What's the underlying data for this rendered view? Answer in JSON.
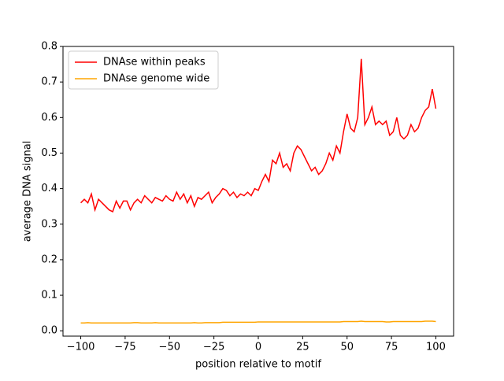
{
  "chart_data": {
    "type": "line",
    "xlabel": "position relative to motif",
    "ylabel": "average DNA signal",
    "x": [
      -100,
      -98,
      -96,
      -94,
      -92,
      -90,
      -88,
      -86,
      -84,
      -82,
      -80,
      -78,
      -76,
      -74,
      -72,
      -70,
      -68,
      -66,
      -64,
      -62,
      -60,
      -58,
      -56,
      -54,
      -52,
      -50,
      -48,
      -46,
      -44,
      -42,
      -40,
      -38,
      -36,
      -34,
      -32,
      -30,
      -28,
      -26,
      -24,
      -22,
      -20,
      -18,
      -16,
      -14,
      -12,
      -10,
      -8,
      -6,
      -4,
      -2,
      0,
      2,
      4,
      6,
      8,
      10,
      12,
      14,
      16,
      18,
      20,
      22,
      24,
      26,
      28,
      30,
      32,
      34,
      36,
      38,
      40,
      42,
      44,
      46,
      48,
      50,
      52,
      54,
      56,
      58,
      60,
      62,
      64,
      66,
      68,
      70,
      72,
      74,
      76,
      78,
      80,
      82,
      84,
      86,
      88,
      90,
      92,
      94,
      96,
      98,
      100
    ],
    "series": [
      {
        "name": "DNAse within peaks",
        "color": "#ff0000",
        "values": [
          0.36,
          0.37,
          0.36,
          0.385,
          0.34,
          0.37,
          0.36,
          0.35,
          0.34,
          0.335,
          0.365,
          0.345,
          0.365,
          0.365,
          0.34,
          0.36,
          0.37,
          0.36,
          0.38,
          0.37,
          0.36,
          0.375,
          0.37,
          0.365,
          0.38,
          0.37,
          0.365,
          0.39,
          0.37,
          0.385,
          0.36,
          0.38,
          0.35,
          0.375,
          0.37,
          0.38,
          0.39,
          0.36,
          0.375,
          0.385,
          0.4,
          0.395,
          0.38,
          0.39,
          0.375,
          0.385,
          0.38,
          0.39,
          0.38,
          0.4,
          0.395,
          0.42,
          0.44,
          0.42,
          0.48,
          0.47,
          0.5,
          0.46,
          0.47,
          0.45,
          0.5,
          0.52,
          0.51,
          0.49,
          0.47,
          0.45,
          0.46,
          0.44,
          0.45,
          0.47,
          0.5,
          0.48,
          0.52,
          0.5,
          0.56,
          0.61,
          0.57,
          0.56,
          0.6,
          0.765,
          0.58,
          0.6,
          0.63,
          0.58,
          0.59,
          0.58,
          0.59,
          0.55,
          0.56,
          0.6,
          0.55,
          0.54,
          0.55,
          0.58,
          0.56,
          0.57,
          0.6,
          0.62,
          0.63,
          0.68,
          0.625
        ]
      },
      {
        "name": "DNAse genome wide",
        "color": "#ffa500",
        "values": [
          0.022,
          0.022,
          0.023,
          0.022,
          0.022,
          0.022,
          0.022,
          0.022,
          0.022,
          0.022,
          0.022,
          0.022,
          0.022,
          0.022,
          0.022,
          0.023,
          0.023,
          0.022,
          0.022,
          0.022,
          0.022,
          0.023,
          0.022,
          0.022,
          0.022,
          0.022,
          0.022,
          0.022,
          0.022,
          0.022,
          0.022,
          0.022,
          0.023,
          0.022,
          0.022,
          0.023,
          0.023,
          0.023,
          0.023,
          0.023,
          0.024,
          0.024,
          0.024,
          0.024,
          0.024,
          0.024,
          0.024,
          0.024,
          0.024,
          0.024,
          0.025,
          0.025,
          0.025,
          0.025,
          0.025,
          0.025,
          0.025,
          0.025,
          0.025,
          0.025,
          0.025,
          0.025,
          0.025,
          0.025,
          0.025,
          0.025,
          0.025,
          0.025,
          0.025,
          0.025,
          0.025,
          0.025,
          0.025,
          0.025,
          0.026,
          0.026,
          0.026,
          0.026,
          0.026,
          0.027,
          0.026,
          0.026,
          0.026,
          0.026,
          0.026,
          0.026,
          0.025,
          0.025,
          0.026,
          0.026,
          0.026,
          0.026,
          0.026,
          0.026,
          0.026,
          0.026,
          0.026,
          0.027,
          0.027,
          0.027,
          0.026
        ]
      }
    ],
    "xlim": [
      -110,
      110
    ],
    "ylim": [
      -0.015,
      0.8
    ],
    "xticks": [
      {
        "value": -100,
        "label": "−100"
      },
      {
        "value": -75,
        "label": "−75"
      },
      {
        "value": -50,
        "label": "−50"
      },
      {
        "value": -25,
        "label": "−25"
      },
      0,
      25,
      50,
      75,
      100
    ],
    "yticks": [
      {
        "value": 0,
        "label": "0.0"
      },
      0.1,
      0.2,
      0.3,
      0.4,
      0.5,
      0.6,
      0.7,
      0.8
    ],
    "legend": "upper left"
  }
}
